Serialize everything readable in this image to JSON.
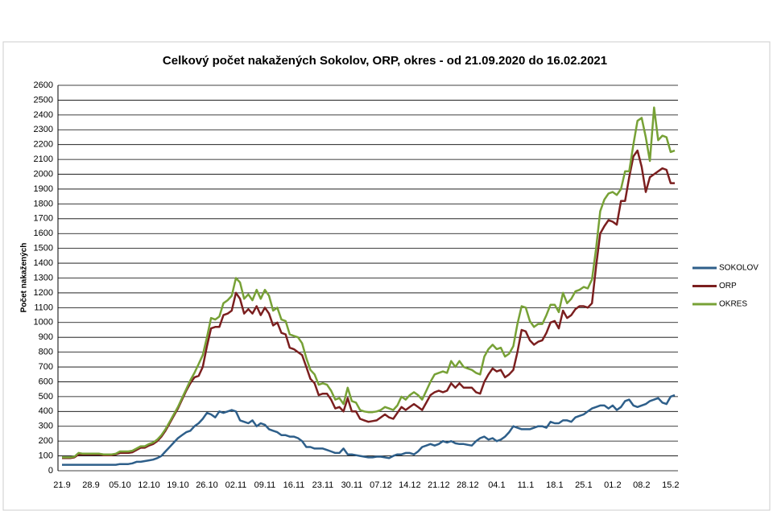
{
  "chart_data": {
    "type": "line",
    "title": "Celkový počet nakažených Sokolov, ORP, okres - od 21.09.2020 do 16.02.2021",
    "y_label": "Počet nakažených",
    "categories": [
      "21.9",
      null,
      null,
      null,
      null,
      null,
      null,
      "28.9",
      null,
      null,
      null,
      null,
      null,
      null,
      "05.10",
      null,
      null,
      null,
      null,
      null,
      null,
      "12.10",
      null,
      null,
      null,
      null,
      null,
      null,
      "19.10",
      null,
      null,
      null,
      null,
      null,
      null,
      "26.10",
      null,
      null,
      null,
      null,
      null,
      null,
      "02.11",
      null,
      null,
      null,
      null,
      null,
      null,
      "09.11",
      null,
      null,
      null,
      null,
      null,
      null,
      "16.11",
      null,
      null,
      null,
      null,
      null,
      null,
      "23.11",
      null,
      null,
      null,
      null,
      null,
      null,
      "30.11",
      null,
      null,
      null,
      null,
      null,
      null,
      "07.12",
      null,
      null,
      null,
      null,
      null,
      null,
      "14.12",
      null,
      null,
      null,
      null,
      null,
      null,
      "21.12",
      null,
      null,
      null,
      null,
      null,
      null,
      "28.12",
      null,
      null,
      null,
      null,
      null,
      null,
      "04.1",
      null,
      null,
      null,
      null,
      null,
      null,
      "11.1",
      null,
      null,
      null,
      null,
      null,
      null,
      "18.1",
      null,
      null,
      null,
      null,
      null,
      null,
      "25.1",
      null,
      null,
      null,
      null,
      null,
      null,
      "01.2",
      null,
      null,
      null,
      null,
      null,
      null,
      "08.2",
      null,
      null,
      null,
      null,
      null,
      null,
      "15.2",
      null
    ],
    "series": [
      {
        "name": "SOKOLOV",
        "color": "#2e5f8a",
        "values": [
          40,
          40,
          40,
          40,
          40,
          40,
          40,
          40,
          40,
          40,
          40,
          40,
          40,
          40,
          45,
          45,
          45,
          50,
          60,
          60,
          65,
          70,
          75,
          85,
          100,
          130,
          160,
          190,
          220,
          240,
          260,
          270,
          300,
          320,
          350,
          390,
          380,
          360,
          400,
          390,
          400,
          410,
          400,
          340,
          330,
          320,
          340,
          300,
          320,
          310,
          280,
          270,
          260,
          240,
          240,
          230,
          230,
          220,
          200,
          160,
          160,
          150,
          150,
          150,
          140,
          130,
          120,
          120,
          150,
          110,
          110,
          105,
          100,
          95,
          90,
          90,
          95,
          95,
          90,
          85,
          100,
          110,
          110,
          120,
          120,
          110,
          130,
          160,
          170,
          180,
          170,
          180,
          200,
          190,
          200,
          185,
          180,
          180,
          175,
          170,
          200,
          220,
          230,
          210,
          220,
          200,
          210,
          230,
          260,
          300,
          290,
          280,
          280,
          280,
          290,
          300,
          300,
          290,
          330,
          320,
          320,
          340,
          340,
          330,
          360,
          370,
          380,
          400,
          420,
          430,
          440,
          440,
          420,
          440,
          410,
          430,
          470,
          480,
          440,
          430,
          440,
          450,
          470,
          480,
          490,
          460,
          450,
          500,
          510
        ]
      },
      {
        "name": "ORP",
        "color": "#7b1f1f",
        "values": [
          85,
          85,
          85,
          90,
          110,
          110,
          110,
          110,
          110,
          110,
          105,
          105,
          105,
          110,
          120,
          120,
          120,
          125,
          140,
          155,
          155,
          170,
          180,
          200,
          230,
          270,
          320,
          370,
          420,
          480,
          540,
          590,
          630,
          640,
          700,
          840,
          960,
          970,
          970,
          1050,
          1060,
          1080,
          1200,
          1160,
          1060,
          1090,
          1060,
          1110,
          1050,
          1100,
          1060,
          980,
          1000,
          930,
          920,
          830,
          820,
          800,
          780,
          700,
          620,
          590,
          510,
          520,
          520,
          480,
          420,
          430,
          400,
          490,
          400,
          400,
          350,
          340,
          330,
          335,
          340,
          360,
          380,
          360,
          350,
          390,
          430,
          410,
          430,
          450,
          430,
          410,
          460,
          510,
          530,
          540,
          530,
          540,
          590,
          560,
          590,
          560,
          560,
          560,
          530,
          520,
          600,
          650,
          690,
          670,
          680,
          630,
          650,
          680,
          800,
          950,
          940,
          880,
          850,
          870,
          880,
          930,
          1000,
          1010,
          960,
          1080,
          1030,
          1050,
          1090,
          1110,
          1110,
          1100,
          1130,
          1380,
          1600,
          1650,
          1690,
          1680,
          1660,
          1820,
          1820,
          1980,
          2120,
          2160,
          2050,
          1880,
          1980,
          2000,
          2020,
          2040,
          2030,
          1940,
          1940
        ]
      },
      {
        "name": "OKRES",
        "color": "#77a136",
        "values": [
          90,
          90,
          90,
          95,
          120,
          115,
          115,
          115,
          115,
          115,
          110,
          110,
          110,
          115,
          130,
          130,
          130,
          135,
          150,
          165,
          165,
          180,
          190,
          210,
          240,
          280,
          330,
          380,
          430,
          490,
          550,
          610,
          660,
          720,
          780,
          900,
          1030,
          1020,
          1040,
          1130,
          1150,
          1180,
          1300,
          1270,
          1160,
          1190,
          1150,
          1220,
          1160,
          1220,
          1180,
          1080,
          1100,
          1020,
          1010,
          920,
          910,
          900,
          860,
          760,
          680,
          650,
          580,
          590,
          580,
          540,
          480,
          490,
          450,
          560,
          470,
          460,
          410,
          400,
          395,
          395,
          400,
          410,
          430,
          420,
          410,
          440,
          500,
          480,
          510,
          530,
          510,
          480,
          540,
          600,
          650,
          660,
          670,
          660,
          740,
          700,
          740,
          700,
          690,
          680,
          660,
          650,
          770,
          820,
          850,
          820,
          830,
          770,
          790,
          840,
          990,
          1110,
          1100,
          1010,
          970,
          990,
          990,
          1050,
          1120,
          1120,
          1070,
          1200,
          1130,
          1160,
          1210,
          1220,
          1240,
          1230,
          1290,
          1500,
          1750,
          1830,
          1870,
          1880,
          1860,
          1900,
          2020,
          2020,
          2200,
          2360,
          2380,
          2250,
          2090,
          2450,
          2230,
          2260,
          2250,
          2150,
          2160
        ]
      }
    ],
    "ylim": [
      0,
      2600
    ],
    "yticks": [
      0,
      100,
      200,
      300,
      400,
      500,
      600,
      700,
      800,
      900,
      1000,
      1100,
      1200,
      1300,
      1400,
      1500,
      1600,
      1700,
      1800,
      1900,
      2000,
      2100,
      2200,
      2300,
      2400,
      2500,
      2600
    ],
    "grid": true,
    "legend": "right"
  }
}
